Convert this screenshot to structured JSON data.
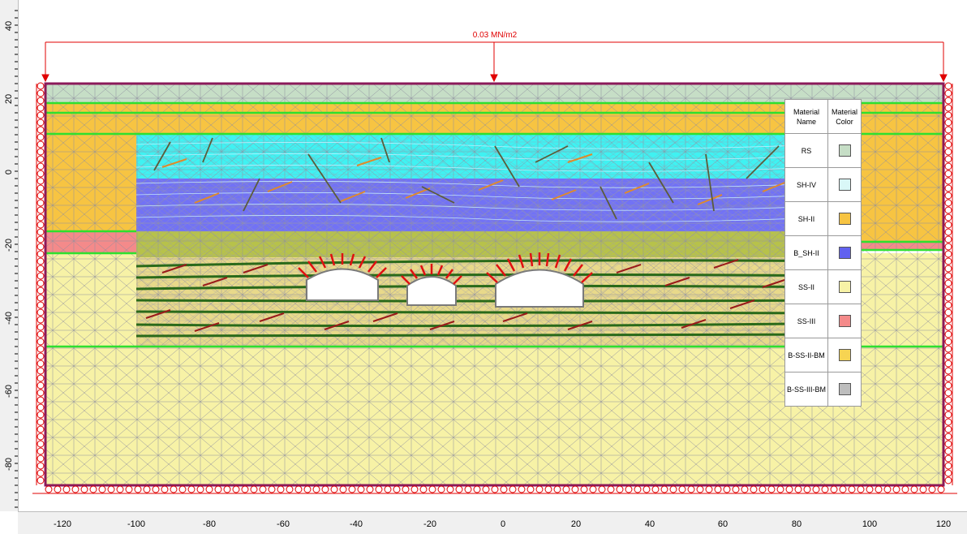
{
  "window": {
    "title": ""
  },
  "y_axis": {
    "ticks": [
      "40",
      "20",
      "0",
      "-20",
      "-40",
      "-60",
      "-80"
    ]
  },
  "x_axis": {
    "ticks": [
      "-120",
      "-100",
      "-80",
      "-60",
      "-40",
      "-20",
      "0",
      "20",
      "40",
      "60",
      "80",
      "100",
      "120"
    ]
  },
  "load": {
    "label": "0.03 MN/m2",
    "color": "#e00000"
  },
  "legend": {
    "header_name": "Material Name",
    "header_color": "Material Color",
    "items": [
      {
        "name": "RS",
        "color": "#c6dec6"
      },
      {
        "name": "SH-IV",
        "color": "#d9f7f7"
      },
      {
        "name": "SH-II",
        "color": "#f7c442"
      },
      {
        "name": "B_SH-II",
        "color": "#6262f0"
      },
      {
        "name": "SS-II",
        "color": "#f7f2a6"
      },
      {
        "name": "SS-III",
        "color": "#f48a8a"
      },
      {
        "name": "B-SS-II-BM",
        "color": "#f7d452"
      },
      {
        "name": "B-SS-III-BM",
        "color": "#bdbdbd"
      }
    ]
  },
  "colors": {
    "ss2": "#f7f2a6",
    "sh2": "#f7c442",
    "rs": "#c6dec6",
    "shiv": "#3ff2f2",
    "bsh2": "#7272f5",
    "olive": "#b7c24a",
    "ss3": "#f48a8a",
    "boundary": "#8b1a5a",
    "layer_line": "#2ee02e",
    "mesh": "#8f8f9f"
  }
}
